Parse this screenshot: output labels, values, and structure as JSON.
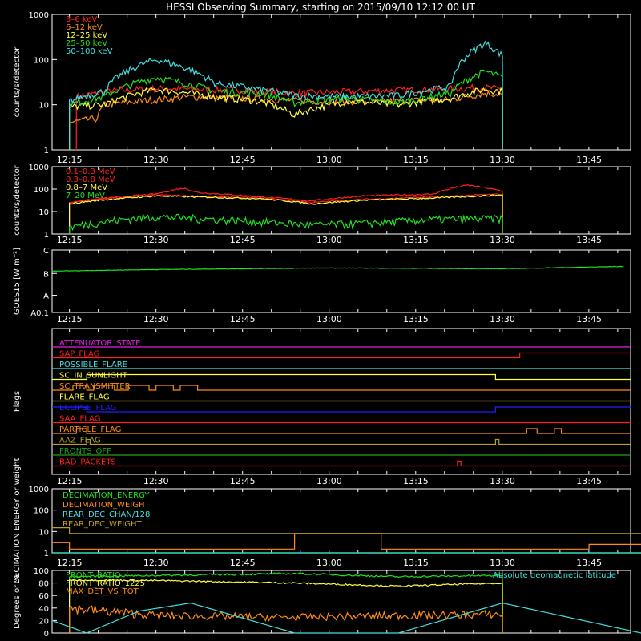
{
  "title": "HESSI Observing Summary, starting on 2015/09/10 12:12:00 UT",
  "time_ticks": [
    "12:15",
    "12:30",
    "12:45",
    "13:00",
    "13:15",
    "13:30",
    "13:45"
  ],
  "colors": {
    "red": "#ff2020",
    "orange": "#ff8c1a",
    "yellow": "#ffff40",
    "green": "#20e020",
    "cyan": "#40e0e0",
    "magenta": "#e020e0",
    "blue": "#2020ff",
    "olive": "#b8a020",
    "darkgreen": "#20a020",
    "white": "#ffffff"
  },
  "chart_data": [
    {
      "type": "line",
      "ylabel": "counts/s/detector",
      "yscale": "log",
      "ylim": [
        1,
        1000
      ],
      "yticks": [
        "1",
        "10",
        "100",
        "1000"
      ],
      "legend": "top-left",
      "x_range": [
        "12:12",
        "13:52"
      ],
      "series": [
        {
          "name": "3–6 keV",
          "color": "red",
          "active": [
            "12:25",
            "13:31"
          ],
          "values": [
            [
              12.27,
              15
            ],
            [
              12.37,
              20
            ],
            [
              12.5,
              23
            ],
            [
              12.75,
              21
            ],
            [
              12.9,
              18
            ],
            [
              13.1,
              20
            ],
            [
              13.3,
              22
            ],
            [
              13.45,
              24
            ],
            [
              13.5,
              22
            ]
          ]
        },
        {
          "name": "6–12 keV",
          "color": "orange",
          "active": [
            "12:25",
            "13:31"
          ],
          "values": [
            [
              12.25,
              4
            ],
            [
              12.33,
              5
            ],
            [
              12.35,
              10
            ],
            [
              12.45,
              12
            ],
            [
              12.6,
              15
            ],
            [
              12.75,
              14
            ],
            [
              12.95,
              12
            ],
            [
              13.15,
              12
            ],
            [
              13.35,
              13
            ],
            [
              13.45,
              18
            ],
            [
              13.5,
              17
            ]
          ]
        },
        {
          "name": "12–25 keV",
          "color": "yellow",
          "active": [
            "12:25",
            "13:31"
          ],
          "values": [
            [
              12.25,
              9
            ],
            [
              12.35,
              10
            ],
            [
              12.5,
              22
            ],
            [
              12.67,
              15
            ],
            [
              12.8,
              12
            ],
            [
              12.9,
              6
            ],
            [
              13.05,
              12
            ],
            [
              13.2,
              10
            ],
            [
              13.35,
              14
            ],
            [
              13.45,
              22
            ],
            [
              13.5,
              20
            ]
          ]
        },
        {
          "name": "25–50 keV",
          "color": "green",
          "active": [
            "12:25",
            "13:31"
          ],
          "values": [
            [
              12.25,
              10
            ],
            [
              12.35,
              15
            ],
            [
              12.5,
              40
            ],
            [
              12.67,
              20
            ],
            [
              12.8,
              18
            ],
            [
              12.9,
              11
            ],
            [
              13.05,
              14
            ],
            [
              13.2,
              11
            ],
            [
              13.35,
              18
            ],
            [
              13.45,
              55
            ],
            [
              13.5,
              40
            ]
          ]
        },
        {
          "name": "50–100 keV",
          "color": "cyan",
          "active": [
            "12:25",
            "13:31"
          ],
          "values": [
            [
              12.25,
              12
            ],
            [
              12.35,
              20
            ],
            [
              12.5,
              100
            ],
            [
              12.67,
              30
            ],
            [
              12.8,
              22
            ],
            [
              12.9,
              16
            ],
            [
              13.05,
              15
            ],
            [
              13.2,
              16
            ],
            [
              13.35,
              25
            ],
            [
              13.45,
              230
            ],
            [
              13.5,
              120
            ]
          ]
        }
      ]
    },
    {
      "type": "line",
      "ylabel": "counts/s/detector",
      "yscale": "log",
      "ylim": [
        1,
        1000
      ],
      "yticks": [
        "1",
        "10",
        "100",
        "1000"
      ],
      "legend": "top-left",
      "series": [
        {
          "name": "0.1–0.3 MeV",
          "color": "red",
          "active": [
            "12:25",
            "13:31"
          ],
          "values": [
            [
              12.25,
              25
            ],
            [
              12.5,
              60
            ],
            [
              12.58,
              110
            ],
            [
              12.62,
              70
            ],
            [
              12.8,
              45
            ],
            [
              12.95,
              30
            ],
            [
              13.1,
              50
            ],
            [
              13.3,
              60
            ],
            [
              13.4,
              150
            ],
            [
              13.5,
              80
            ]
          ]
        },
        {
          "name": "0.3–0.8 MeV",
          "color": "red",
          "active": [
            "12:25",
            "13:31"
          ],
          "values": [
            [
              12.25,
              25
            ],
            [
              12.5,
              55
            ],
            [
              12.8,
              40
            ],
            [
              12.95,
              25
            ],
            [
              13.1,
              35
            ],
            [
              13.3,
              45
            ],
            [
              13.5,
              60
            ]
          ]
        },
        {
          "name": "0.8–7 MeV",
          "color": "yellow",
          "active": [
            "12:25",
            "13:31"
          ],
          "values": [
            [
              12.25,
              22
            ],
            [
              12.5,
              50
            ],
            [
              12.8,
              38
            ],
            [
              12.95,
              22
            ],
            [
              13.1,
              32
            ],
            [
              13.3,
              40
            ],
            [
              13.5,
              55
            ]
          ]
        },
        {
          "name": "7–20 MeV",
          "color": "green",
          "active": [
            "12:25",
            "13:31"
          ],
          "values": [
            [
              12.25,
              2
            ],
            [
              12.5,
              6
            ],
            [
              12.8,
              3.5
            ],
            [
              12.95,
              2.5
            ],
            [
              13.1,
              3
            ],
            [
              13.3,
              4.5
            ],
            [
              13.5,
              5
            ]
          ]
        }
      ]
    },
    {
      "type": "line",
      "ylabel": "GOES15 [W m⁻²]",
      "yticks": [
        "A0.1",
        "A",
        "B",
        "C"
      ],
      "series": [
        {
          "name": "GOES15",
          "color": "green",
          "values": [
            [
              12.2,
              5.3
            ],
            [
              12.5,
              5.5
            ],
            [
              13.0,
              5.7
            ],
            [
              13.5,
              5.6
            ],
            [
              13.85,
              5.9
            ]
          ]
        }
      ]
    },
    {
      "type": "flags",
      "ylabel": "Flags",
      "rows": [
        {
          "name": "ATTENUATOR_STATE",
          "color": "magenta",
          "steps": [
            [
              12.2,
              0
            ]
          ]
        },
        {
          "name": "SAP_FLAG",
          "color": "red",
          "steps": [
            [
              12.2,
              0
            ],
            [
              13.55,
              1
            ]
          ]
        },
        {
          "name": "POSSIBLE_FLARE",
          "color": "cyan",
          "steps": [
            [
              12.2,
              0
            ]
          ]
        },
        {
          "name": "SC_IN_SUNLIGHT",
          "color": "yellow",
          "steps": [
            [
              12.2,
              0
            ],
            [
              12.3,
              1
            ],
            [
              13.48,
              0
            ]
          ]
        },
        {
          "name": "SC_TRANSMITTER",
          "color": "orange",
          "steps": [
            [
              12.2,
              0
            ],
            [
              12.26,
              1
            ],
            [
              12.3,
              0
            ],
            [
              12.32,
              1
            ],
            [
              12.38,
              0
            ],
            [
              12.42,
              1
            ],
            [
              12.48,
              0
            ],
            [
              12.5,
              1
            ],
            [
              12.55,
              0
            ],
            [
              12.57,
              1
            ],
            [
              12.62,
              0
            ]
          ]
        },
        {
          "name": "FLARE_FLAG",
          "color": "yellow",
          "steps": [
            [
              12.2,
              0
            ]
          ]
        },
        {
          "name": "ECLIPSE_FLAG",
          "color": "blue",
          "steps": [
            [
              12.2,
              1
            ],
            [
              12.3,
              0
            ],
            [
              13.48,
              1
            ]
          ]
        },
        {
          "name": "SAA_FLAG",
          "color": "red",
          "steps": [
            [
              12.2,
              0
            ]
          ]
        },
        {
          "name": "PARTICLE_FLAG",
          "color": "orange",
          "steps": [
            [
              12.2,
              0
            ],
            [
              12.27,
              1
            ],
            [
              12.3,
              0
            ],
            [
              13.57,
              1
            ],
            [
              13.6,
              0
            ],
            [
              13.65,
              1
            ],
            [
              13.67,
              0
            ]
          ]
        },
        {
          "name": "AAZ_FLAG",
          "color": "olive",
          "steps": [
            [
              12.2,
              0
            ],
            [
              12.3,
              1
            ],
            [
              12.31,
              0
            ],
            [
              13.48,
              1
            ],
            [
              13.49,
              0
            ]
          ]
        },
        {
          "name": "FRONTS_OFF",
          "color": "darkgreen",
          "steps": [
            [
              12.2,
              0
            ]
          ]
        },
        {
          "name": "BAD_PACKETS",
          "color": "red",
          "steps": [
            [
              12.2,
              0
            ],
            [
              13.37,
              1
            ],
            [
              13.38,
              0
            ]
          ]
        }
      ]
    },
    {
      "type": "line",
      "ylabel": "DECIMATION ENERGY or weight",
      "yscale": "log",
      "ylim": [
        1,
        1000
      ],
      "yticks": [
        "1",
        "10",
        "100",
        "1000"
      ],
      "legend": "top-left",
      "series": [
        {
          "name": "DECIMATION_ENERGY",
          "color": "green",
          "values": [
            [
              12.2,
              1
            ],
            [
              13.9,
              1
            ]
          ]
        },
        {
          "name": "DECIMATION_WEIGHT",
          "color": "orange",
          "values": [
            [
              12.2,
              3
            ],
            [
              12.25,
              3
            ],
            [
              12.25,
              1.5
            ],
            [
              12.9,
              1.5
            ],
            [
              12.9,
              8
            ],
            [
              13.15,
              8
            ],
            [
              13.15,
              1.5
            ],
            [
              13.75,
              1.5
            ],
            [
              13.75,
              2.5
            ],
            [
              13.9,
              2.5
            ]
          ]
        },
        {
          "name": "REAR_DEC_CHAN/128",
          "color": "cyan",
          "values": [
            [
              12.2,
              1
            ],
            [
              13.9,
              1
            ]
          ]
        },
        {
          "name": "REAR_DEC_WEIGHT",
          "color": "olive",
          "values": [
            [
              12.2,
              15
            ],
            [
              12.25,
              15
            ],
            [
              12.25,
              8
            ],
            [
              13.9,
              8
            ]
          ]
        }
      ]
    },
    {
      "type": "line",
      "ylabel": "Degrees or %",
      "ylim": [
        0,
        100
      ],
      "yticks": [
        "0",
        "20",
        "40",
        "60",
        "80",
        "100"
      ],
      "legend": "top-left",
      "series": [
        {
          "name": "FRONT_RATIO",
          "color": "green",
          "active": [
            "12:25",
            "13:31"
          ],
          "values": [
            [
              12.25,
              90
            ],
            [
              12.5,
              92
            ],
            [
              12.9,
              95
            ],
            [
              13.2,
              90
            ],
            [
              13.5,
              92
            ]
          ]
        },
        {
          "name": "FRONT_RATIO_1225",
          "color": "yellow",
          "active": [
            "12:25",
            "13:31"
          ],
          "values": [
            [
              12.25,
              85
            ],
            [
              12.5,
              84
            ],
            [
              12.9,
              80
            ],
            [
              13.2,
              75
            ],
            [
              13.5,
              80
            ]
          ]
        },
        {
          "name": "MAX_DET_VS_TOT",
          "color": "orange",
          "active": [
            "12:25",
            "13:31"
          ],
          "values": [
            [
              12.25,
              40
            ],
            [
              12.5,
              28
            ],
            [
              12.9,
              25
            ],
            [
              13.2,
              28
            ],
            [
              13.5,
              30
            ]
          ]
        },
        {
          "name": "Absolute geomagnetic latitude",
          "color": "cyan",
          "values": [
            [
              12.2,
              20
            ],
            [
              12.3,
              0
            ],
            [
              12.45,
              35
            ],
            [
              12.6,
              48
            ],
            [
              12.9,
              0
            ],
            [
              13.2,
              0
            ],
            [
              13.5,
              48
            ],
            [
              13.9,
              0
            ]
          ]
        }
      ]
    }
  ]
}
